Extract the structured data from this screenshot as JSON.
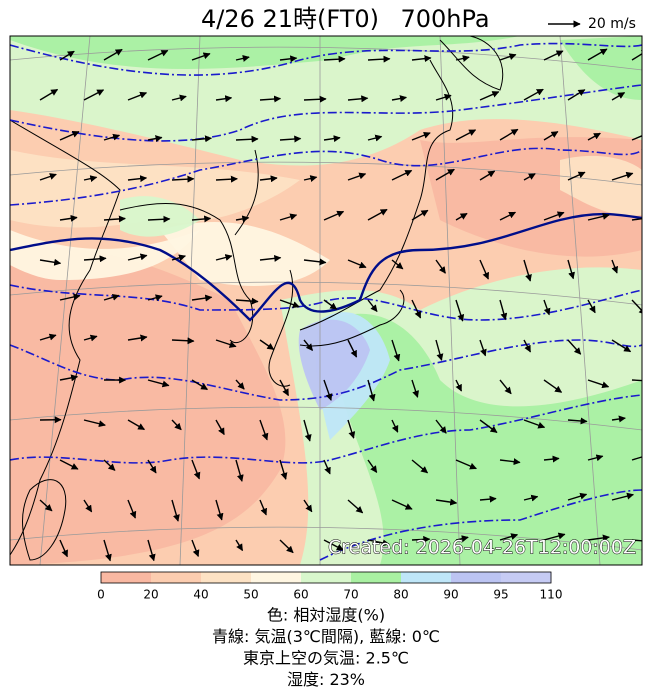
{
  "header": {
    "title": "4/26  21時(FT0)",
    "level": "700hPa",
    "scale_label": "20 m/s"
  },
  "map": {
    "created": "Created: 2026-04-26T12:00:00Z"
  },
  "colorbar": {
    "ticks": [
      0,
      20,
      40,
      50,
      60,
      70,
      80,
      90,
      95,
      110
    ],
    "colors": [
      "#f9b8a2",
      "#fccdb0",
      "#fde2c4",
      "#fff6e2",
      "#d8f7cc",
      "#a9f0a2",
      "#bfe6f8",
      "#bcc4f2",
      "#c6cbf4"
    ]
  },
  "captions": [
    "色: 相対湿度(%)",
    "青線: 気温(3℃間隔), 藍線: 0℃",
    "東京上空の気温: 2.5℃",
    "湿度: 23%"
  ]
}
